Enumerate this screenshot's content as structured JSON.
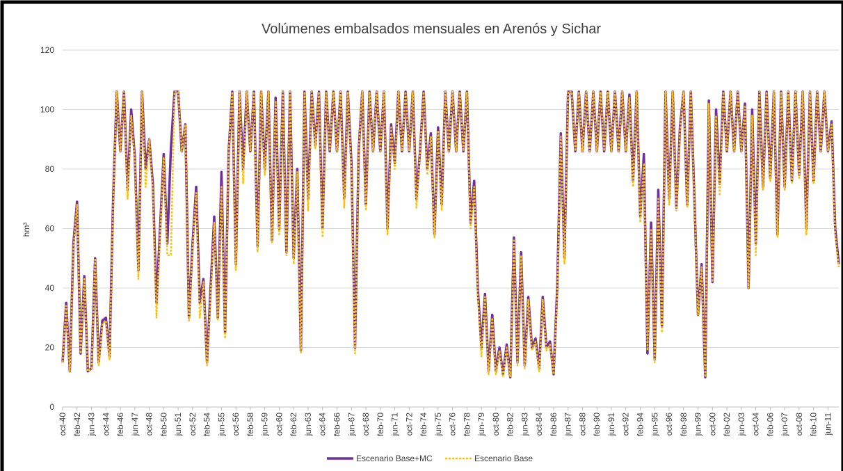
{
  "chart_data": {
    "type": "line",
    "title": "Volúmenes embalsados mensuales en Arenós y Sichar",
    "y_label": "hm³",
    "ylim": [
      0,
      120
    ],
    "yticks": [
      0,
      20,
      40,
      60,
      80,
      100,
      120
    ],
    "grid": true,
    "legend": "bottom",
    "categories": [
      "oct-40",
      null,
      null,
      null,
      "feb-42",
      null,
      null,
      null,
      "jun-43",
      null,
      null,
      null,
      "oct-44",
      null,
      null,
      null,
      "feb-46",
      null,
      null,
      null,
      "jun-47",
      null,
      null,
      null,
      "oct-48",
      null,
      null,
      null,
      "feb-50",
      null,
      null,
      null,
      "jun-51",
      null,
      null,
      null,
      "oct-52",
      null,
      null,
      null,
      "feb-54",
      null,
      null,
      null,
      "jun-55",
      null,
      null,
      null,
      "oct-56",
      null,
      null,
      null,
      "feb-58",
      null,
      null,
      null,
      "jun-59",
      null,
      null,
      null,
      "oct-60",
      null,
      null,
      null,
      "feb-62",
      null,
      null,
      null,
      "jun-63",
      null,
      null,
      null,
      "oct-64",
      null,
      null,
      null,
      "feb-66",
      null,
      null,
      null,
      "jun-67",
      null,
      null,
      null,
      "oct-68",
      null,
      null,
      null,
      "feb-70",
      null,
      null,
      null,
      "jun-71",
      null,
      null,
      null,
      "oct-72",
      null,
      null,
      null,
      "feb-74",
      null,
      null,
      null,
      "jun-75",
      null,
      null,
      null,
      "oct-76",
      null,
      null,
      null,
      "feb-78",
      null,
      null,
      null,
      "jun-79",
      null,
      null,
      null,
      "oct-80",
      null,
      null,
      null,
      "feb-82",
      null,
      null,
      null,
      "jun-83",
      null,
      null,
      null,
      "oct-84",
      null,
      null,
      null,
      "feb-86",
      null,
      null,
      null,
      "jun-87",
      null,
      null,
      null,
      "oct-88",
      null,
      null,
      null,
      "feb-90",
      null,
      null,
      null,
      "jun-91",
      null,
      null,
      null,
      "oct-92",
      null,
      null,
      null,
      "feb-94",
      null,
      null,
      null,
      "jun-95",
      null,
      null,
      null,
      "oct-96",
      null,
      null,
      null,
      "feb-98",
      null,
      null,
      null,
      "jun-99",
      null,
      null,
      null,
      "oct-00",
      null,
      null,
      null,
      "feb-02",
      null,
      null,
      null,
      "jun-03",
      null,
      null,
      null,
      "oct-04",
      null,
      null,
      null,
      "feb-06",
      null,
      null,
      null,
      "jun-07",
      null,
      null,
      null,
      "oct-08",
      null,
      null,
      null,
      "feb-10",
      null,
      null,
      null,
      "jun-11",
      null,
      null,
      null
    ],
    "series": [
      {
        "name": "Escenario Base+MC",
        "color": "#7030a0",
        "dash": false,
        "values": [
          15,
          35,
          12,
          55,
          69,
          18,
          44,
          12,
          13,
          50,
          15,
          29,
          30,
          17,
          70,
          106,
          86,
          106,
          73,
          100,
          84,
          46,
          106,
          80,
          90,
          75,
          35,
          60,
          85,
          55,
          87,
          106,
          106,
          86,
          95,
          30,
          55,
          74,
          35,
          43,
          15,
          40,
          64,
          30,
          79,
          25,
          86,
          106,
          48,
          106,
          80,
          106,
          86,
          106,
          54,
          106,
          80,
          106,
          56,
          104,
          60,
          106,
          52,
          106,
          50,
          80,
          19,
          106,
          70,
          106,
          88,
          106,
          60,
          106,
          86,
          106,
          86,
          106,
          70,
          106,
          82,
          20,
          86,
          106,
          68,
          106,
          86,
          106,
          86,
          106,
          60,
          95,
          82,
          106,
          86,
          106,
          86,
          106,
          70,
          86,
          106,
          80,
          92,
          58,
          94,
          68,
          106,
          86,
          106,
          86,
          106,
          86,
          106,
          62,
          76,
          40,
          20,
          38,
          12,
          31,
          12,
          20,
          11,
          21,
          10,
          57,
          15,
          52,
          14,
          37,
          20,
          23,
          13,
          37,
          20,
          22,
          11,
          40,
          92,
          50,
          106,
          106,
          86,
          106,
          86,
          106,
          86,
          106,
          86,
          106,
          86,
          106,
          86,
          106,
          86,
          106,
          86,
          105,
          76,
          106,
          64,
          85,
          18,
          62,
          16,
          73,
          27,
          106,
          70,
          106,
          67,
          94,
          106,
          68,
          106,
          70,
          31,
          48,
          10,
          103,
          42,
          100,
          75,
          106,
          86,
          106,
          86,
          106,
          86,
          102,
          40,
          100,
          55,
          106,
          74,
          106,
          77,
          106,
          58,
          106,
          74,
          106,
          76,
          106,
          78,
          106,
          60,
          106,
          76,
          106,
          86,
          106,
          86,
          96,
          60,
          48
        ]
      },
      {
        "name": "Escenario Base",
        "color": "#ffc000",
        "dash": true,
        "values": [
          15,
          34,
          12,
          54,
          68,
          18,
          43,
          12,
          13,
          50,
          14,
          28,
          29,
          16,
          69,
          106,
          86,
          106,
          70,
          98,
          83,
          43,
          106,
          74,
          90,
          73,
          30,
          58,
          84,
          51,
          51,
          106,
          106,
          86,
          95,
          29,
          54,
          72,
          30,
          42,
          14,
          38,
          62,
          29,
          74,
          23,
          86,
          106,
          46,
          106,
          75,
          106,
          86,
          106,
          52,
          106,
          78,
          106,
          55,
          103,
          58,
          106,
          51,
          106,
          48,
          79,
          18,
          106,
          66,
          106,
          87,
          106,
          57,
          106,
          86,
          106,
          86,
          106,
          67,
          106,
          80,
          18,
          86,
          106,
          66,
          106,
          86,
          106,
          86,
          106,
          58,
          94,
          80,
          106,
          86,
          106,
          86,
          106,
          67,
          86,
          106,
          78,
          91,
          57,
          93,
          66,
          106,
          86,
          106,
          86,
          106,
          86,
          106,
          60,
          74,
          38,
          17,
          37,
          11,
          30,
          11,
          19,
          10,
          20,
          10,
          56,
          14,
          51,
          13,
          36,
          19,
          22,
          12,
          36,
          19,
          21,
          11,
          38,
          91,
          48,
          106,
          106,
          86,
          106,
          86,
          106,
          86,
          106,
          86,
          106,
          86,
          106,
          86,
          106,
          86,
          106,
          86,
          104,
          74,
          106,
          62,
          82,
          19,
          60,
          15,
          70,
          25,
          106,
          68,
          106,
          66,
          93,
          106,
          67,
          106,
          69,
          31,
          47,
          10,
          102,
          42,
          98,
          71,
          106,
          86,
          106,
          86,
          106,
          86,
          101,
          40,
          98,
          51,
          106,
          73,
          106,
          76,
          106,
          57,
          106,
          73,
          106,
          75,
          106,
          77,
          106,
          58,
          106,
          75,
          106,
          86,
          106,
          86,
          95,
          58,
          47
        ]
      }
    ]
  }
}
